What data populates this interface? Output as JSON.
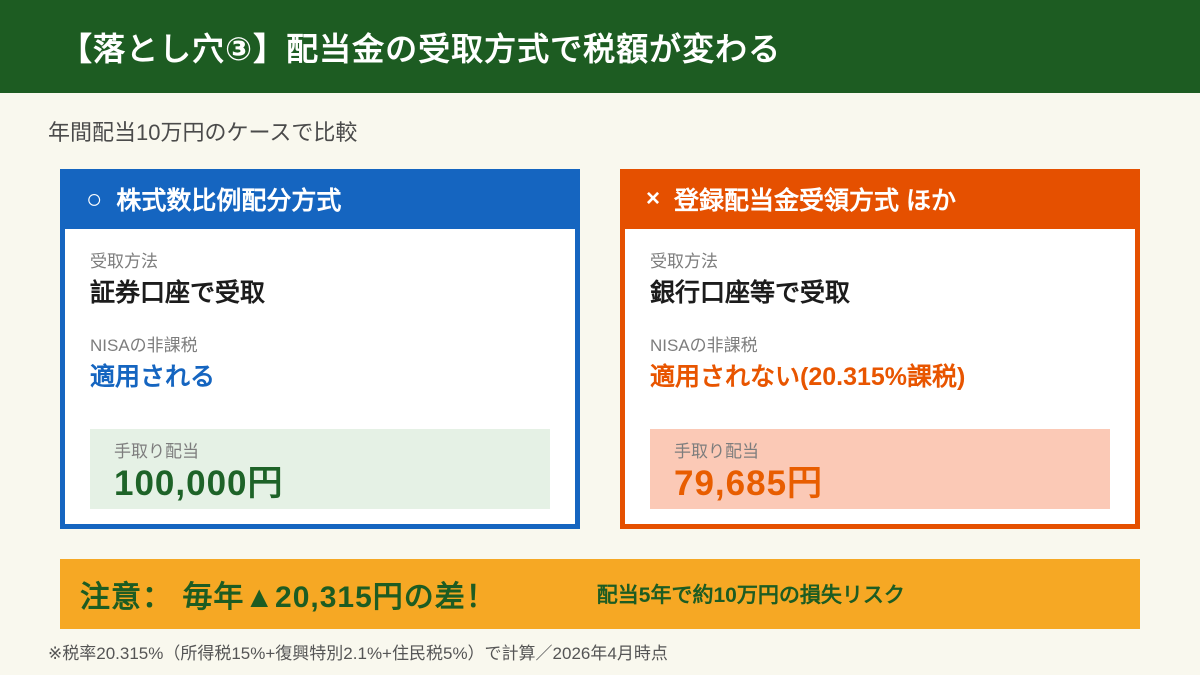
{
  "header": {
    "title": "【落とし穴③】配当金の受取方式で税額が変わる"
  },
  "subtitle": "年間配当10万円のケースで比較",
  "cards": [
    {
      "mark": "○",
      "title": "株式数比例配分方式",
      "fields": [
        {
          "label": "受取方法",
          "value": "証券口座で受取"
        },
        {
          "label": "NISAの非課税",
          "value": "適用される"
        }
      ],
      "result": {
        "label": "手取り配当",
        "amount": "100,000円"
      }
    },
    {
      "mark": "×",
      "title": "登録配当金受領方式 ほか",
      "fields": [
        {
          "label": "受取方法",
          "value": "銀行口座等で受取"
        },
        {
          "label": "NISAの非課税",
          "value": "適用されない(20.315%課税)"
        }
      ],
      "result": {
        "label": "手取り配当",
        "amount": "79,685円"
      }
    }
  ],
  "warning": {
    "main": "注意： 毎年▲20,315円の差！",
    "sub": "配当5年で約10万円の損失リスク"
  },
  "footnote": "※税率20.315%（所得税15%+復興特別2.1%+住民税5%）で計算／2026年4月時点",
  "colors": {
    "banner_green": "#1d5c22",
    "accent_blue": "#1565c0",
    "accent_orange": "#e55000",
    "result_green_bg": "#e5f1e5",
    "result_green_text": "#1e6328",
    "result_pink_bg": "#fbc9b6",
    "result_orange_text": "#e85d00",
    "warning_amber": "#f6a824",
    "page_background": "#f9f8ee"
  }
}
